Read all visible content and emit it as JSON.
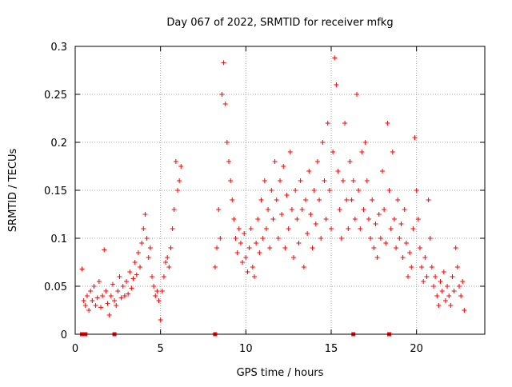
{
  "chart_data": {
    "type": "scatter",
    "title": "Day 067 of 2022, SRMTID for receiver mfkg",
    "xlabel": "GPS time / hours",
    "ylabel": "SRMTID / TECUs",
    "xlim": [
      0,
      24
    ],
    "ylim": [
      0,
      0.3
    ],
    "grid": true,
    "marker": "plus",
    "x_ticks": [
      0,
      5,
      10,
      15,
      20
    ],
    "x_tick_labels": [
      "0",
      "5",
      "10",
      "15",
      "20"
    ],
    "y_ticks": [
      0,
      0.05,
      0.1,
      0.15,
      0.2,
      0.25,
      0.3
    ],
    "y_tick_labels": [
      "0",
      "0.05",
      "0.1",
      "0.15",
      "0.2",
      "0.25",
      "0.3"
    ],
    "series": [
      {
        "name": "SRMTID",
        "color": "#ff0000",
        "points": [
          [
            0.4,
            0.068
          ],
          [
            0.5,
            0.035
          ],
          [
            0.6,
            0.03
          ],
          [
            0.7,
            0.04
          ],
          [
            0.8,
            0.025
          ],
          [
            0.9,
            0.045
          ],
          [
            1.0,
            0.035
          ],
          [
            1.1,
            0.05
          ],
          [
            1.2,
            0.03
          ],
          [
            1.3,
            0.038
          ],
          [
            1.4,
            0.055
          ],
          [
            1.5,
            0.028
          ],
          [
            1.6,
            0.04
          ],
          [
            1.7,
            0.088
          ],
          [
            1.8,
            0.045
          ],
          [
            1.9,
            0.032
          ],
          [
            2.0,
            0.02
          ],
          [
            2.1,
            0.04
          ],
          [
            2.2,
            0.052
          ],
          [
            2.3,
            0.035
          ],
          [
            2.4,
            0.03
          ],
          [
            2.5,
            0.045
          ],
          [
            2.6,
            0.06
          ],
          [
            2.7,
            0.038
          ],
          [
            2.8,
            0.05
          ],
          [
            2.9,
            0.04
          ],
          [
            3.0,
            0.055
          ],
          [
            3.1,
            0.042
          ],
          [
            3.2,
            0.065
          ],
          [
            3.3,
            0.048
          ],
          [
            3.4,
            0.058
          ],
          [
            3.5,
            0.075
          ],
          [
            3.6,
            0.062
          ],
          [
            3.7,
            0.085
          ],
          [
            3.8,
            0.07
          ],
          [
            3.9,
            0.095
          ],
          [
            4.0,
            0.11
          ],
          [
            4.1,
            0.125
          ],
          [
            4.2,
            0.1
          ],
          [
            4.3,
            0.08
          ],
          [
            4.4,
            0.09
          ],
          [
            4.5,
            0.06
          ],
          [
            4.6,
            0.05
          ],
          [
            4.7,
            0.04
          ],
          [
            4.8,
            0.045
          ],
          [
            4.9,
            0.035
          ],
          [
            5.0,
            0.015
          ],
          [
            5.1,
            0.045
          ],
          [
            5.2,
            0.06
          ],
          [
            5.3,
            0.075
          ],
          [
            5.4,
            0.08
          ],
          [
            5.5,
            0.07
          ],
          [
            5.6,
            0.09
          ],
          [
            5.7,
            0.11
          ],
          [
            5.8,
            0.13
          ],
          [
            5.9,
            0.18
          ],
          [
            6.0,
            0.15
          ],
          [
            6.1,
            0.16
          ],
          [
            6.2,
            0.175
          ],
          [
            8.2,
            0.07
          ],
          [
            8.3,
            0.09
          ],
          [
            8.4,
            0.13
          ],
          [
            8.5,
            0.1
          ],
          [
            8.6,
            0.25
          ],
          [
            8.7,
            0.283
          ],
          [
            8.8,
            0.24
          ],
          [
            8.9,
            0.2
          ],
          [
            9.0,
            0.18
          ],
          [
            9.1,
            0.16
          ],
          [
            9.2,
            0.14
          ],
          [
            9.3,
            0.12
          ],
          [
            9.4,
            0.1
          ],
          [
            9.5,
            0.085
          ],
          [
            9.6,
            0.11
          ],
          [
            9.7,
            0.095
          ],
          [
            9.8,
            0.075
          ],
          [
            9.9,
            0.105
          ],
          [
            10.0,
            0.08
          ],
          [
            10.1,
            0.065
          ],
          [
            10.2,
            0.09
          ],
          [
            10.3,
            0.11
          ],
          [
            10.4,
            0.07
          ],
          [
            10.5,
            0.06
          ],
          [
            10.6,
            0.095
          ],
          [
            10.7,
            0.12
          ],
          [
            10.8,
            0.085
          ],
          [
            10.9,
            0.14
          ],
          [
            11.0,
            0.1
          ],
          [
            11.1,
            0.16
          ],
          [
            11.2,
            0.11
          ],
          [
            11.3,
            0.13
          ],
          [
            11.4,
            0.09
          ],
          [
            11.5,
            0.15
          ],
          [
            11.6,
            0.12
          ],
          [
            11.7,
            0.18
          ],
          [
            11.8,
            0.14
          ],
          [
            11.9,
            0.1
          ],
          [
            12.0,
            0.16
          ],
          [
            12.1,
            0.125
          ],
          [
            12.2,
            0.175
          ],
          [
            12.3,
            0.09
          ],
          [
            12.4,
            0.145
          ],
          [
            12.5,
            0.11
          ],
          [
            12.6,
            0.19
          ],
          [
            12.7,
            0.13
          ],
          [
            12.8,
            0.08
          ],
          [
            12.9,
            0.15
          ],
          [
            13.0,
            0.12
          ],
          [
            13.1,
            0.095
          ],
          [
            13.2,
            0.16
          ],
          [
            13.3,
            0.13
          ],
          [
            13.4,
            0.07
          ],
          [
            13.5,
            0.14
          ],
          [
            13.6,
            0.105
          ],
          [
            13.7,
            0.17
          ],
          [
            13.8,
            0.125
          ],
          [
            13.9,
            0.09
          ],
          [
            14.0,
            0.15
          ],
          [
            14.1,
            0.115
          ],
          [
            14.2,
            0.18
          ],
          [
            14.3,
            0.14
          ],
          [
            14.4,
            0.1
          ],
          [
            14.5,
            0.2
          ],
          [
            14.6,
            0.16
          ],
          [
            14.7,
            0.12
          ],
          [
            14.8,
            0.22
          ],
          [
            14.9,
            0.15
          ],
          [
            15.0,
            0.11
          ],
          [
            15.1,
            0.19
          ],
          [
            15.2,
            0.288
          ],
          [
            15.3,
            0.26
          ],
          [
            15.4,
            0.17
          ],
          [
            15.5,
            0.13
          ],
          [
            15.6,
            0.1
          ],
          [
            15.7,
            0.16
          ],
          [
            15.8,
            0.22
          ],
          [
            15.9,
            0.14
          ],
          [
            16.0,
            0.11
          ],
          [
            16.1,
            0.18
          ],
          [
            16.2,
            0.14
          ],
          [
            16.3,
            0.16
          ],
          [
            16.4,
            0.12
          ],
          [
            16.5,
            0.25
          ],
          [
            16.6,
            0.15
          ],
          [
            16.7,
            0.11
          ],
          [
            16.8,
            0.19
          ],
          [
            16.9,
            0.13
          ],
          [
            17.0,
            0.2
          ],
          [
            17.1,
            0.16
          ],
          [
            17.2,
            0.12
          ],
          [
            17.3,
            0.1
          ],
          [
            17.4,
            0.14
          ],
          [
            17.5,
            0.09
          ],
          [
            17.6,
            0.115
          ],
          [
            17.7,
            0.08
          ],
          [
            17.8,
            0.125
          ],
          [
            17.9,
            0.1
          ],
          [
            18.0,
            0.17
          ],
          [
            18.1,
            0.13
          ],
          [
            18.2,
            0.095
          ],
          [
            18.3,
            0.22
          ],
          [
            18.4,
            0.15
          ],
          [
            18.5,
            0.11
          ],
          [
            18.6,
            0.19
          ],
          [
            18.7,
            0.12
          ],
          [
            18.8,
            0.09
          ],
          [
            18.9,
            0.14
          ],
          [
            19.0,
            0.1
          ],
          [
            19.1,
            0.115
          ],
          [
            19.2,
            0.08
          ],
          [
            19.3,
            0.13
          ],
          [
            19.4,
            0.095
          ],
          [
            19.5,
            0.06
          ],
          [
            19.6,
            0.085
          ],
          [
            19.7,
            0.07
          ],
          [
            19.8,
            0.11
          ],
          [
            19.9,
            0.205
          ],
          [
            20.0,
            0.15
          ],
          [
            20.1,
            0.12
          ],
          [
            20.2,
            0.09
          ],
          [
            20.3,
            0.07
          ],
          [
            20.4,
            0.055
          ],
          [
            20.5,
            0.08
          ],
          [
            20.6,
            0.06
          ],
          [
            20.7,
            0.14
          ],
          [
            20.8,
            0.1
          ],
          [
            20.9,
            0.07
          ],
          [
            21.0,
            0.05
          ],
          [
            21.1,
            0.06
          ],
          [
            21.2,
            0.04
          ],
          [
            21.3,
            0.03
          ],
          [
            21.4,
            0.055
          ],
          [
            21.5,
            0.045
          ],
          [
            21.6,
            0.065
          ],
          [
            21.7,
            0.035
          ],
          [
            21.8,
            0.05
          ],
          [
            21.9,
            0.04
          ],
          [
            22.0,
            0.03
          ],
          [
            22.1,
            0.06
          ],
          [
            22.2,
            0.045
          ],
          [
            22.3,
            0.09
          ],
          [
            22.4,
            0.07
          ],
          [
            22.5,
            0.05
          ],
          [
            22.6,
            0.04
          ],
          [
            22.7,
            0.055
          ],
          [
            22.8,
            0.025
          ]
        ]
      }
    ],
    "baseline_markers_x": [
      0.4,
      0.6,
      2.3,
      8.2,
      16.3,
      18.4
    ]
  }
}
